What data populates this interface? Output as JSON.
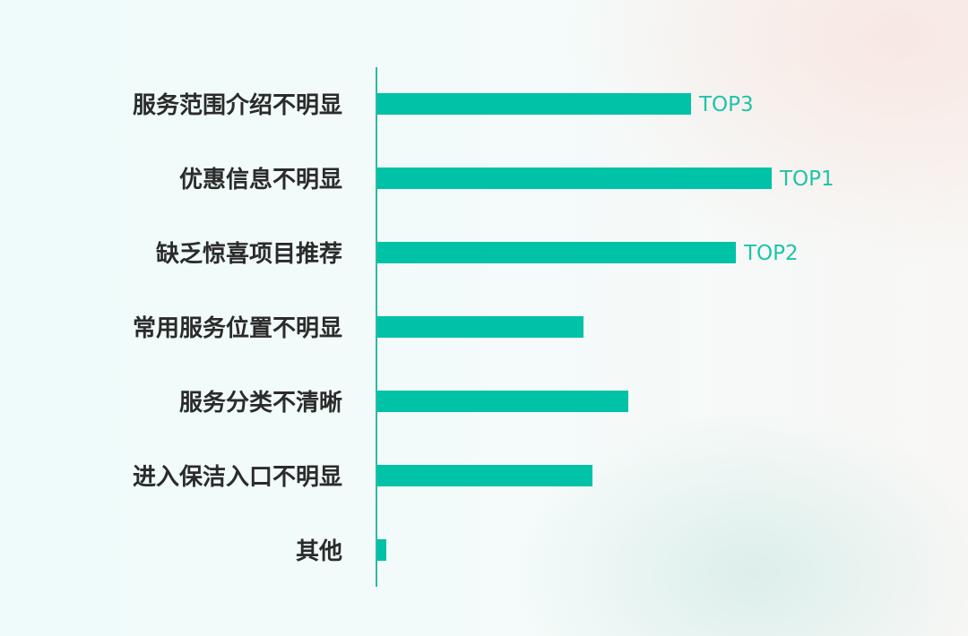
{
  "colors": {
    "bar": "#00c2a6",
    "axis": "#2fb9a2",
    "label": "#2b2b2b",
    "rank": "#1fc4a8"
  },
  "chart_data": {
    "type": "bar",
    "orientation": "horizontal",
    "categories": [
      "服务范围介绍不明显",
      "优惠信息不明显",
      "缺乏惊喜项目推荐",
      "常用服务位置不明显",
      "服务分类不清晰",
      "进入保洁入口不明显",
      "其他"
    ],
    "values": [
      35,
      44,
      40,
      23,
      28,
      24,
      1
    ],
    "annotations": [
      "TOP3",
      "TOP1",
      "TOP2",
      "",
      "",
      "",
      ""
    ],
    "xlim": [
      0,
      60
    ],
    "grid": false,
    "legend": "none"
  }
}
